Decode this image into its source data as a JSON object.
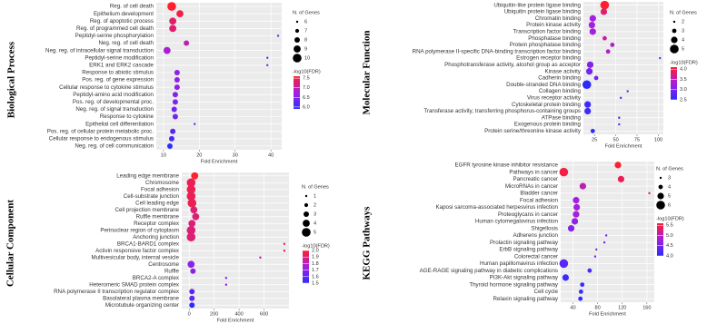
{
  "chart_data": [
    {
      "type": "dot",
      "title": "Biological Process",
      "xlabel": "Fold Enrichment",
      "categories": [
        "Reg. of cell death",
        "Epithelium development",
        "Reg. of apoptotic process",
        "Reg. of programmed cell death",
        "Peptidyl-serine phosphorylation",
        "Neg. reg. of cell death",
        "Neg. reg. of intracellular signal transduction",
        "Peptidyl-serine modification",
        "ERK1 and ERK2 cascade",
        "Response to abiotic stimulus",
        "Pos. reg. of gene expression",
        "Cellular response to cytokine stimulus",
        "Peptidyl-amino acid modification",
        "Pos. reg. of developmental proc.",
        "Neg. reg. of signal transduction",
        "Response to cytokine",
        "Epithelial cell differentiation",
        "Pos. reg. of cellular protein metabolic proc.",
        "Cellular response to endogenous stimulus",
        "Neg. reg. of cell communication"
      ],
      "values": [
        12.3,
        14.6,
        12.6,
        12.6,
        42,
        16.4,
        11,
        39,
        39,
        13.8,
        13.8,
        13.8,
        13.3,
        13.3,
        13,
        13.3,
        18.7,
        12.6,
        12.3,
        11.8
      ],
      "sizes": [
        10,
        9,
        9,
        9,
        6,
        8,
        9,
        6,
        6,
        8,
        8,
        8,
        8,
        8,
        8,
        8,
        6,
        8,
        8,
        8
      ],
      "fdr": [
        7.6,
        7.5,
        7.3,
        7.3,
        6.4,
        7.0,
        6.8,
        6.5,
        6.5,
        6.6,
        6.6,
        6.6,
        6.5,
        6.5,
        6.4,
        6.4,
        6.3,
        6.2,
        6.1,
        5.9
      ],
      "xlim": [
        8,
        43
      ],
      "xticks": [
        10,
        20,
        30,
        40
      ],
      "size_legend_title": "N. of Genes",
      "size_legend": [
        6,
        7,
        8,
        9,
        10
      ],
      "color_legend_title": "-log10(FDR)",
      "color_lim": [
        5.9,
        7.6
      ],
      "color_ticks": [
        {
          "value": 6,
          "label": "6.0"
        },
        6.5,
        {
          "value": 7,
          "label": "7.0"
        },
        7.5
      ],
      "color_scale": [
        "#2e2bff",
        "#a51fe0",
        "#ff1f2e"
      ],
      "grid": true
    },
    {
      "type": "dot",
      "title": "Molecular Function",
      "xlabel": "Fold Enrichment",
      "categories": [
        "Ubiquitin-like protein ligase binding",
        "Ubiquitin protein ligase binding",
        "Chromatin binding",
        "Protein kinase activity",
        "Transcription factor binding",
        "Phosphatase binding",
        "Protein phosphatase binding",
        "RNA polymerase II-specific DNA-binding transcription factor binding",
        "Estrogen receptor binding",
        "Phosphotransferase activity, alcohol group as acceptor",
        "Kinase activity",
        "Cadherin binding",
        "Double-stranded DNA binding",
        "Collagen binding",
        "Virus receptor activity",
        "Cytoskeletal protein binding",
        "Transferase activity, transferring phosphorus-containing groups",
        "ATPase binding",
        "Exogenous protein binding",
        "Protein serine/threonine kinase activity"
      ],
      "values": [
        37,
        36,
        23,
        22,
        23,
        37,
        46,
        41,
        102,
        20,
        19,
        27,
        16,
        64,
        56,
        17,
        17,
        54,
        54,
        23
      ],
      "sizes": [
        5,
        4,
        4,
        4,
        4,
        3,
        3,
        3,
        2,
        4,
        4,
        3,
        5,
        2,
        2,
        4,
        4,
        2,
        2,
        3
      ],
      "fdr": [
        4.1,
        3.8,
        3.3,
        3.3,
        3.3,
        3.6,
        3.4,
        3.4,
        2.8,
        3.1,
        3.0,
        3.0,
        2.5,
        2.7,
        2.7,
        2.6,
        2.6,
        2.6,
        2.6,
        2.5
      ],
      "xlim": [
        12,
        106
      ],
      "xticks": [
        25,
        50,
        75,
        100
      ],
      "size_legend_title": "N. of Genes",
      "size_legend": [
        2,
        3,
        4,
        5
      ],
      "color_legend_title": "-log10(FDR)",
      "color_lim": [
        2.5,
        4.1
      ],
      "color_ticks": [
        2.5,
        {
          "value": 3,
          "label": "3.0"
        },
        3.5,
        {
          "value": 4,
          "label": "4.0"
        }
      ],
      "color_scale": [
        "#2e2bff",
        "#a51fe0",
        "#ff1f2e"
      ],
      "grid": true
    },
    {
      "type": "dot",
      "title": "Cellular Component",
      "xlabel": "Fold Enrichment",
      "categories": [
        "Leading edge membrane",
        "Chromosome",
        "Focal adhesion",
        "Cell-substrate junction",
        "Cell leading edge",
        "Cell projection membrane",
        "Ruffle membrane",
        "Receptor complex",
        "Perinuclear region of cytoplasm",
        "Anchoring junction",
        "BRCA1-BARD1 complex",
        "Activin responsive factor complex",
        "Multivesicular body, internal vesicle",
        "Centrosome",
        "Ruffle",
        "BRCA2-A complex",
        "Heteromeric SMAD protein complex",
        "RNA polymerase II transcription regulator complex",
        "Basolateral plasma membrane",
        "Microtubule organizing center"
      ],
      "values": [
        44,
        15,
        15,
        15,
        22,
        37,
        52,
        22,
        15,
        15,
        763,
        763,
        570,
        15,
        30,
        296,
        296,
        22,
        22,
        22
      ],
      "sizes": [
        4,
        5,
        5,
        5,
        5,
        4,
        4,
        4,
        5,
        5,
        1,
        1,
        1,
        4,
        3,
        1,
        1,
        3,
        3,
        3
      ],
      "fdr": [
        2.0,
        1.95,
        1.95,
        1.95,
        1.95,
        1.9,
        1.9,
        1.9,
        1.9,
        1.9,
        1.9,
        1.9,
        1.8,
        1.7,
        1.7,
        1.7,
        1.7,
        1.6,
        1.6,
        1.5
      ],
      "xlim": [
        -60,
        800
      ],
      "xticks": [
        0,
        200,
        400,
        600
      ],
      "size_legend_title": "N. of Genes",
      "size_legend": [
        1,
        2,
        3,
        4,
        5
      ],
      "color_legend_title": "-log10(FDR)",
      "color_lim": [
        1.5,
        2.0
      ],
      "color_ticks": [
        1.5,
        1.6,
        1.7,
        1.8,
        1.9,
        {
          "value": 2,
          "label": "2.0"
        }
      ],
      "color_scale": [
        "#2e2bff",
        "#a51fe0",
        "#ff1f2e"
      ],
      "grid": true
    },
    {
      "type": "dot",
      "title": "KEGG Pathways",
      "xlabel": "Fold Enrichment",
      "categories": [
        "EGFR tyrosine kinase inhibitor resistance",
        "Pathways in cancer",
        "Pancreatic cancer",
        "MicroRNAs in cancer",
        "Bladder cancer",
        "Focal adhesion",
        "Kaposi sarcoma-associated herpesvirus infection",
        "Proteoglycans in cancer",
        "Human cytomegalovirus infection",
        "Shigellosis",
        "Adherens junction",
        "Prolactin signaling pathway",
        "ErbB signaling pathway",
        "Colorectal cancer",
        "Human papillomavirus infection",
        "AGE-RAGE signaling pathway in diabetic complications",
        "PI3K-Akt signaling pathway",
        "Thyroid hormone signaling pathway",
        "Cell cycle",
        "Relaxin signaling pathway"
      ],
      "values": [
        113,
        25,
        118,
        56,
        164,
        45,
        46,
        45,
        43,
        37,
        94,
        91,
        78,
        76,
        25,
        67,
        28,
        55,
        53,
        52
      ],
      "sizes": [
        5,
        6,
        5,
        5,
        3,
        5,
        5,
        5,
        5,
        5,
        3,
        3,
        3,
        3,
        6,
        4,
        5,
        4,
        4,
        4
      ],
      "fdr": [
        5.6,
        5.5,
        5.4,
        5.0,
        5.2,
        4.8,
        4.8,
        4.8,
        4.7,
        4.6,
        4.5,
        4.5,
        4.5,
        4.5,
        4.3,
        4.2,
        4.1,
        4.1,
        4.1,
        4.0
      ],
      "xlim": [
        20,
        172
      ],
      "xticks": [
        40,
        80,
        120,
        160
      ],
      "size_legend_title": "N. of Genes",
      "size_legend": [
        3,
        4,
        5,
        6
      ],
      "color_legend_title": "-log10(FDR)",
      "color_lim": [
        4.0,
        5.6
      ],
      "color_ticks": [
        {
          "value": 4,
          "label": "4.0"
        },
        4.5,
        {
          "value": 5,
          "label": "5.0"
        },
        5.5
      ],
      "color_scale": [
        "#2e2bff",
        "#a51fe0",
        "#ff1f2e"
      ],
      "grid": true
    }
  ]
}
